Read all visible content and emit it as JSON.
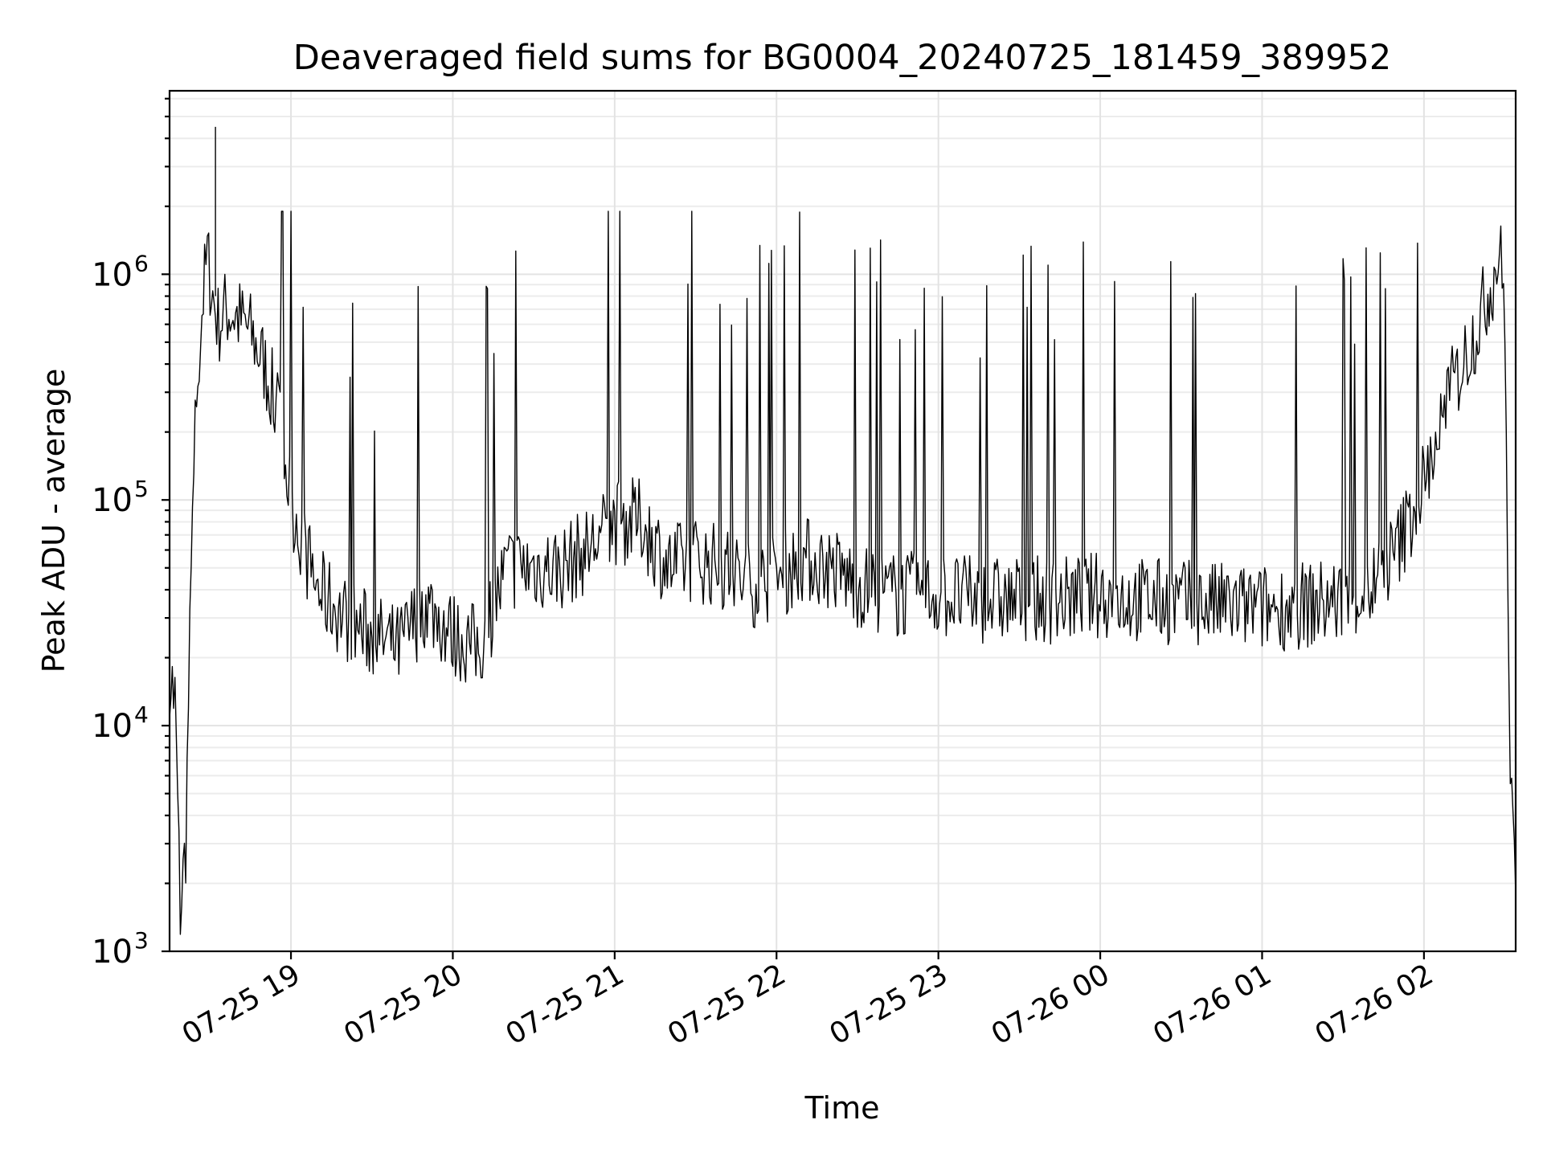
{
  "chart_data": {
    "type": "line",
    "title": "Deaveraged field sums for BG0004_20240725_181459_389952",
    "xlabel": "Time",
    "ylabel": "Peak ADU - average",
    "yscale": "log",
    "ylim": [
      1000,
      6500000
    ],
    "xlim": [
      "07-25 18:15",
      "07-26 02:34"
    ],
    "grid": true,
    "line_color": "#000000",
    "x_ticks": [
      "07-25 19",
      "07-25 20",
      "07-25 21",
      "07-25 22",
      "07-25 23",
      "07-26 00",
      "07-26 01",
      "07-26 02"
    ],
    "y_ticks": [
      {
        "base": "10",
        "exp": "3",
        "value": 1000
      },
      {
        "base": "10",
        "exp": "4",
        "value": 10000
      },
      {
        "base": "10",
        "exp": "5",
        "value": 100000
      },
      {
        "base": "10",
        "exp": "6",
        "value": 1000000
      }
    ],
    "series": [
      {
        "x": [
          "07-25 18:15",
          "07-25 18:17",
          "07-25 18:19",
          "07-25 18:21",
          "07-25 18:23",
          "07-25 18:25",
          "07-25 18:27",
          "07-25 18:29",
          "07-25 18:31",
          "07-25 18:33",
          "07-25 18:36",
          "07-25 18:40",
          "07-25 18:45",
          "07-25 18:50",
          "07-25 18:55",
          "07-25 19:00",
          "07-25 19:05",
          "07-25 19:10",
          "07-25 19:20",
          "07-25 19:30",
          "07-25 19:40",
          "07-25 19:50",
          "07-25 20:00",
          "07-25 20:10",
          "07-25 20:20",
          "07-25 20:30",
          "07-25 20:40",
          "07-25 20:50",
          "07-25 21:00",
          "07-25 21:10",
          "07-25 21:20",
          "07-25 21:30",
          "07-25 21:40",
          "07-25 21:50",
          "07-25 22:00",
          "07-25 22:10",
          "07-25 22:20",
          "07-25 22:30",
          "07-25 22:40",
          "07-25 22:50",
          "07-25 23:00",
          "07-25 23:15",
          "07-25 23:30",
          "07-25 23:45",
          "07-26 00:00",
          "07-26 00:15",
          "07-26 00:30",
          "07-26 00:45",
          "07-26 01:00",
          "07-26 01:15",
          "07-26 01:30",
          "07-26 01:40",
          "07-26 01:50",
          "07-26 02:00",
          "07-26 02:10",
          "07-26 02:20",
          "07-26 02:26",
          "07-26 02:28",
          "07-26 02:30",
          "07-26 02:32",
          "07-26 02:34"
        ],
        "values": [
          17000,
          13000,
          1500,
          3000,
          50000,
          300000,
          700000,
          1200000,
          800000,
          600000,
          700000,
          650000,
          550000,
          400000,
          250000,
          100000,
          60000,
          40000,
          30000,
          25000,
          22000,
          35000,
          25000,
          22000,
          50000,
          50000,
          50000,
          60000,
          80000,
          80000,
          50000,
          55000,
          50000,
          42000,
          45000,
          55000,
          50000,
          42000,
          38000,
          38000,
          38000,
          36000,
          36000,
          36000,
          38000,
          36000,
          35000,
          34000,
          33000,
          34000,
          36000,
          40000,
          60000,
          120000,
          300000,
          600000,
          1000000,
          1300000,
          700000,
          5000,
          1800
        ]
      }
    ],
    "spikes_note_max": 4500000
  }
}
